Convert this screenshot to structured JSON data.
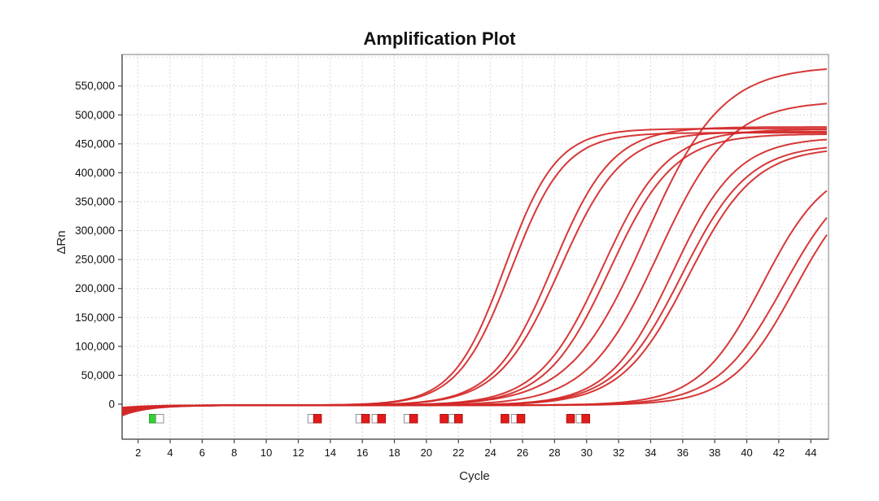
{
  "chart_data": {
    "type": "line",
    "title": "Amplification Plot",
    "xlabel": "Cycle",
    "ylabel": "ΔRn",
    "x_ticks": [
      2,
      4,
      6,
      8,
      10,
      12,
      14,
      16,
      18,
      20,
      22,
      24,
      26,
      28,
      30,
      32,
      34,
      36,
      38,
      40,
      42,
      44
    ],
    "y_tick_values": [
      0,
      50000,
      100000,
      150000,
      200000,
      250000,
      300000,
      350000,
      400000,
      450000,
      500000,
      550000
    ],
    "y_tick_labels": [
      "0",
      "50,000",
      "100,000",
      "150,000",
      "200,000",
      "250,000",
      "300,000",
      "350,000",
      "400,000",
      "450,000",
      "500,000",
      "550,000"
    ],
    "xlim": [
      1,
      45.1
    ],
    "ylim": [
      -60000,
      604000
    ],
    "grid": "dotted",
    "grid_x_step": 2,
    "grid_y_step": 50000,
    "curve_color": "#d32727",
    "curve_width": 2,
    "series_note": "qPCR amplification sigmoids: value(x) = plateau/(1+exp(-slope*(x-ct_mid))) + baseline dip decaying from cycle 1",
    "series": [
      {
        "name": "curve-01",
        "ct_mid": 24.9,
        "slope": 0.62,
        "plateau": 478000,
        "dip": -16000,
        "end_value": 478000
      },
      {
        "name": "curve-02",
        "ct_mid": 25.3,
        "slope": 0.6,
        "plateau": 471000,
        "dip": -6000,
        "end_value": 471000
      },
      {
        "name": "curve-03",
        "ct_mid": 27.9,
        "slope": 0.54,
        "plateau": 481000,
        "dip": -12000,
        "end_value": 481000
      },
      {
        "name": "curve-04",
        "ct_mid": 28.35,
        "slope": 0.52,
        "plateau": 473000,
        "dip": -18000,
        "end_value": 473000
      },
      {
        "name": "curve-05",
        "ct_mid": 31.0,
        "slope": 0.5,
        "plateau": 477000,
        "dip": -4000,
        "end_value": 477000
      },
      {
        "name": "curve-06",
        "ct_mid": 31.45,
        "slope": 0.5,
        "plateau": 469000,
        "dip": -10000,
        "end_value": 468000
      },
      {
        "name": "curve-07",
        "ct_mid": 33.7,
        "slope": 0.42,
        "plateau": 586000,
        "dip": -8000,
        "end_value": 572000
      },
      {
        "name": "curve-08",
        "ct_mid": 34.5,
        "slope": 0.45,
        "plateau": 526000,
        "dip": -14000,
        "end_value": 515000
      },
      {
        "name": "curve-09",
        "ct_mid": 35.4,
        "slope": 0.5,
        "plateau": 463000,
        "dip": -5000,
        "end_value": 459000
      },
      {
        "name": "curve-10",
        "ct_mid": 35.95,
        "slope": 0.48,
        "plateau": 451000,
        "dip": -15000,
        "end_value": 445000
      },
      {
        "name": "curve-11",
        "ct_mid": 36.35,
        "slope": 0.48,
        "plateau": 446000,
        "dip": -7000,
        "end_value": 438000
      },
      {
        "name": "curve-12",
        "ct_mid": 41.0,
        "slope": 0.5,
        "plateau": 421000,
        "dip": -11000,
        "end_value": 355000
      },
      {
        "name": "curve-13",
        "ct_mid": 42.3,
        "slope": 0.48,
        "plateau": 413000,
        "dip": -9000,
        "end_value": 320000
      },
      {
        "name": "curve-14",
        "ct_mid": 43.0,
        "slope": 0.5,
        "plateau": 403000,
        "dip": -13000,
        "end_value": 290000
      }
    ],
    "ct_markers": [
      {
        "cycle": 2.95,
        "color": "green"
      },
      {
        "cycle": 3.35,
        "color": "white"
      },
      {
        "cycle": 12.85,
        "color": "white"
      },
      {
        "cycle": 13.2,
        "color": "red"
      },
      {
        "cycle": 15.85,
        "color": "white"
      },
      {
        "cycle": 16.2,
        "color": "red"
      },
      {
        "cycle": 16.85,
        "color": "white"
      },
      {
        "cycle": 17.2,
        "color": "red"
      },
      {
        "cycle": 18.85,
        "color": "white"
      },
      {
        "cycle": 19.2,
        "color": "red"
      },
      {
        "cycle": 21.1,
        "color": "red"
      },
      {
        "cycle": 21.65,
        "color": "white"
      },
      {
        "cycle": 22.0,
        "color": "red"
      },
      {
        "cycle": 24.9,
        "color": "red"
      },
      {
        "cycle": 25.55,
        "color": "white"
      },
      {
        "cycle": 25.9,
        "color": "red"
      },
      {
        "cycle": 29.0,
        "color": "red"
      },
      {
        "cycle": 29.6,
        "color": "white"
      },
      {
        "cycle": 29.95,
        "color": "red"
      }
    ],
    "marker_colors": {
      "red": {
        "fill": "#e31b1b",
        "stroke": "#b01010"
      },
      "green": {
        "fill": "#33d133",
        "stroke": "#23a023"
      },
      "white": {
        "fill": "#ffffff",
        "stroke": "#909090"
      }
    },
    "colors": {
      "grid": "#cccccc",
      "plot_border": "#949494",
      "axis_line": "#444444",
      "tick": "#444444",
      "tick_text": "#1a1a1a",
      "background": "#ffffff"
    },
    "legend": "none"
  }
}
